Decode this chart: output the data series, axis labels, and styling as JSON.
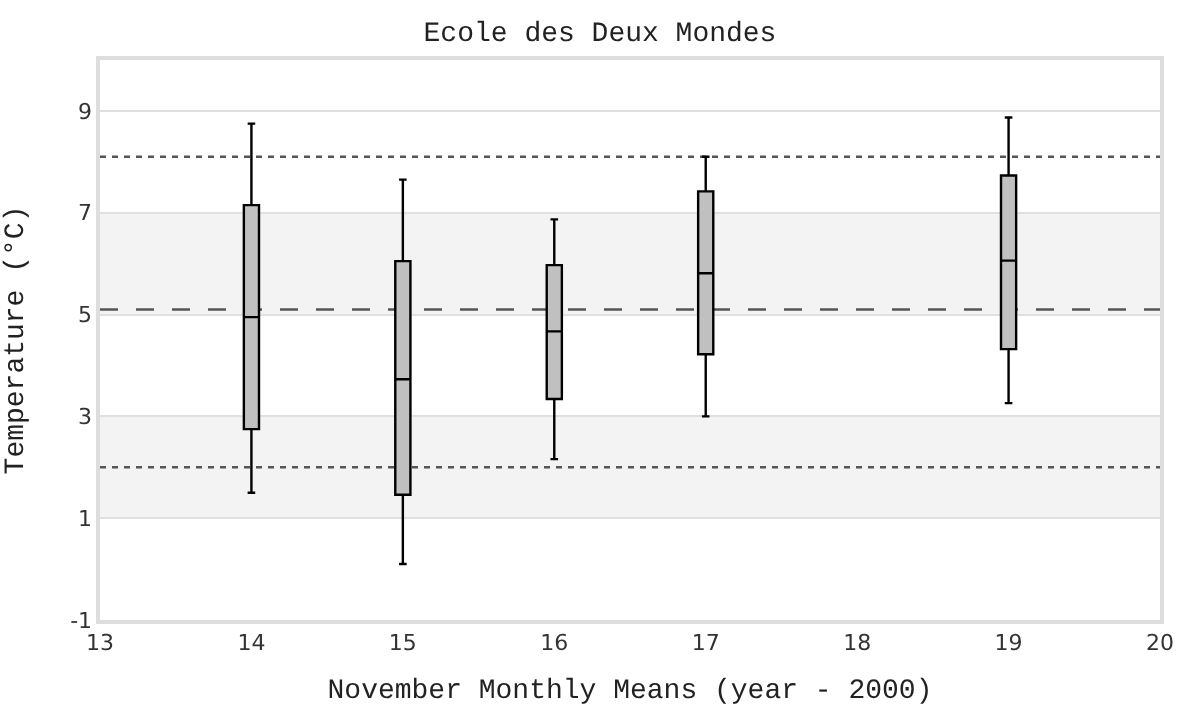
{
  "chart_data": {
    "type": "box",
    "title": "Ecole des Deux Mondes",
    "xlabel": "November Monthly Means (year - 2000)",
    "ylabel": "Temperature (°C)",
    "x": [
      14,
      15,
      16,
      17,
      19
    ],
    "boxes": [
      {
        "low": 1.5,
        "q1": 2.75,
        "median": 4.95,
        "q3": 7.15,
        "high": 8.75
      },
      {
        "low": 0.1,
        "q1": 1.46,
        "median": 3.73,
        "q3": 6.05,
        "high": 7.65
      },
      {
        "low": 2.16,
        "q1": 3.34,
        "median": 4.67,
        "q3": 5.97,
        "high": 6.87
      },
      {
        "low": 3.0,
        "q1": 4.22,
        "median": 5.81,
        "q3": 7.42,
        "high": 8.1
      },
      {
        "low": 3.26,
        "q1": 4.32,
        "median": 6.06,
        "q3": 7.73,
        "high": 8.87
      }
    ],
    "color": "#c0c0c0",
    "xlim": [
      13,
      20
    ],
    "xticks": [
      13,
      14,
      15,
      16,
      17,
      18,
      19,
      20
    ],
    "ylim": [
      -1,
      10
    ],
    "yticks": [
      -1,
      1,
      3,
      5,
      7,
      9
    ],
    "grid": "y",
    "ref_lines": [
      {
        "axis": "y",
        "value": 8.1,
        "line_style": "dotted",
        "color": "#555555"
      },
      {
        "axis": "y",
        "value": 5.1,
        "line_style": "dashed",
        "color": "#555555"
      },
      {
        "axis": "y",
        "value": 2.0,
        "line_style": "dotted",
        "color": "#555555"
      }
    ],
    "bands": [
      {
        "axis": "y",
        "from": 1,
        "to": 3,
        "color": "#f3f3f3"
      },
      {
        "axis": "y",
        "from": 5,
        "to": 7,
        "color": "#f3f3f3"
      }
    ]
  }
}
